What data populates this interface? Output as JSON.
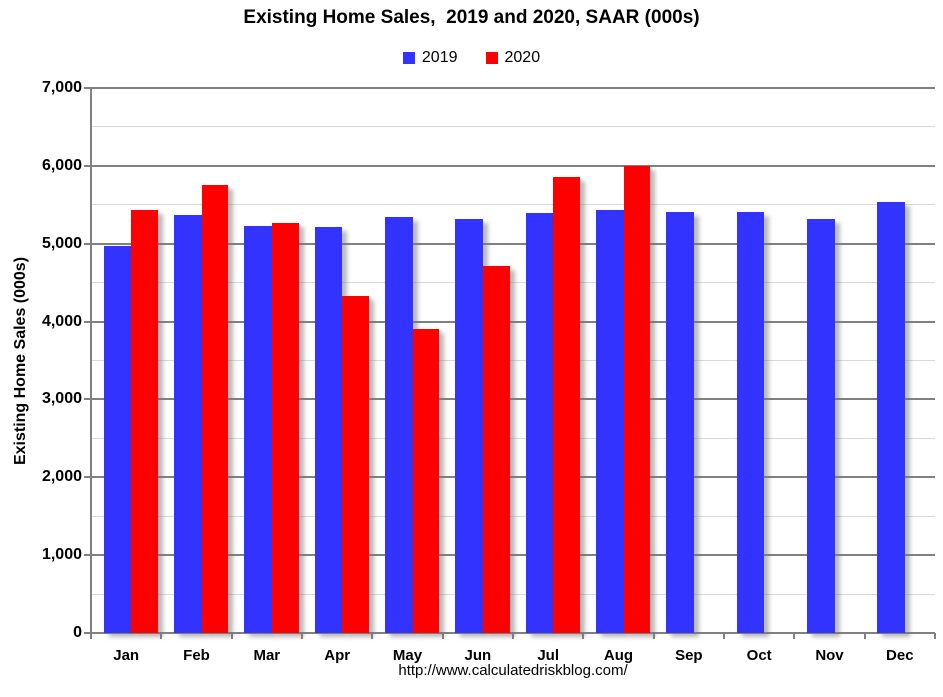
{
  "chart_data": {
    "type": "bar",
    "title": "Existing Home Sales,  2019 and 2020, SAAR (000s)",
    "ylabel": "Existing Home Sales (000s)",
    "xlabel": "",
    "ylim": [
      0,
      7000
    ],
    "ytick_step": 1000,
    "ytick_labels": [
      "0",
      "1,000",
      "2,000",
      "3,000",
      "4,000",
      "5,000",
      "6,000",
      "7,000"
    ],
    "minor_grid_step": 500,
    "grid": true,
    "legend_position": "top-center",
    "categories": [
      "Jan",
      "Feb",
      "Mar",
      "Apr",
      "May",
      "Jun",
      "Jul",
      "Aug",
      "Sep",
      "Oct",
      "Nov",
      "Dec"
    ],
    "series": [
      {
        "name": "2019",
        "color": "#3333ff",
        "values": [
          4970,
          5370,
          5230,
          5220,
          5340,
          5320,
          5400,
          5430,
          5410,
          5410,
          5320,
          5530
        ]
      },
      {
        "name": "2020",
        "color": "#ff0000",
        "values": [
          5430,
          5760,
          5270,
          4330,
          3910,
          4710,
          5860,
          6000,
          null,
          null,
          null,
          null
        ]
      }
    ],
    "colors": {
      "major_gridline": "#808080",
      "minor_gridline": "#d9d9d9",
      "axis": "#808080",
      "text": "#000000",
      "background": "#ffffff"
    }
  },
  "footer": "http://www.calculatedriskblog.com/"
}
